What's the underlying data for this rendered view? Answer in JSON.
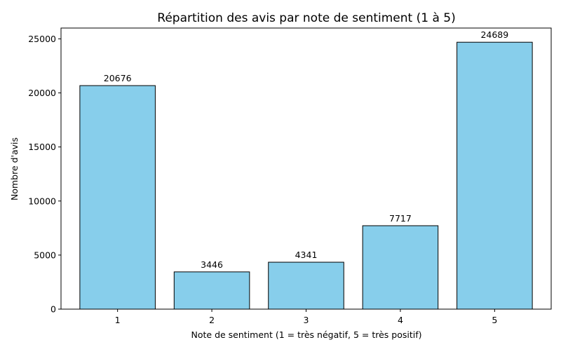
{
  "chart_data": {
    "type": "bar",
    "title": "Répartition des avis par note de sentiment (1 à 5)",
    "xlabel": "Note de sentiment (1 = très négatif, 5 = très positif)",
    "ylabel": "Nombre d'avis",
    "categories": [
      "1",
      "2",
      "3",
      "4",
      "5"
    ],
    "values": [
      20676,
      3446,
      4341,
      7717,
      24689
    ],
    "data_labels": [
      "20676",
      "3446",
      "4341",
      "7717",
      "24689"
    ],
    "ylim": [
      0,
      26000
    ],
    "yticks": [
      0,
      5000,
      10000,
      15000,
      20000,
      25000
    ],
    "ytick_labels": [
      "0",
      "5000",
      "10000",
      "15000",
      "20000",
      "25000"
    ],
    "grid": false,
    "bar_color": "#87CEEB",
    "edge_color": "#000000"
  }
}
